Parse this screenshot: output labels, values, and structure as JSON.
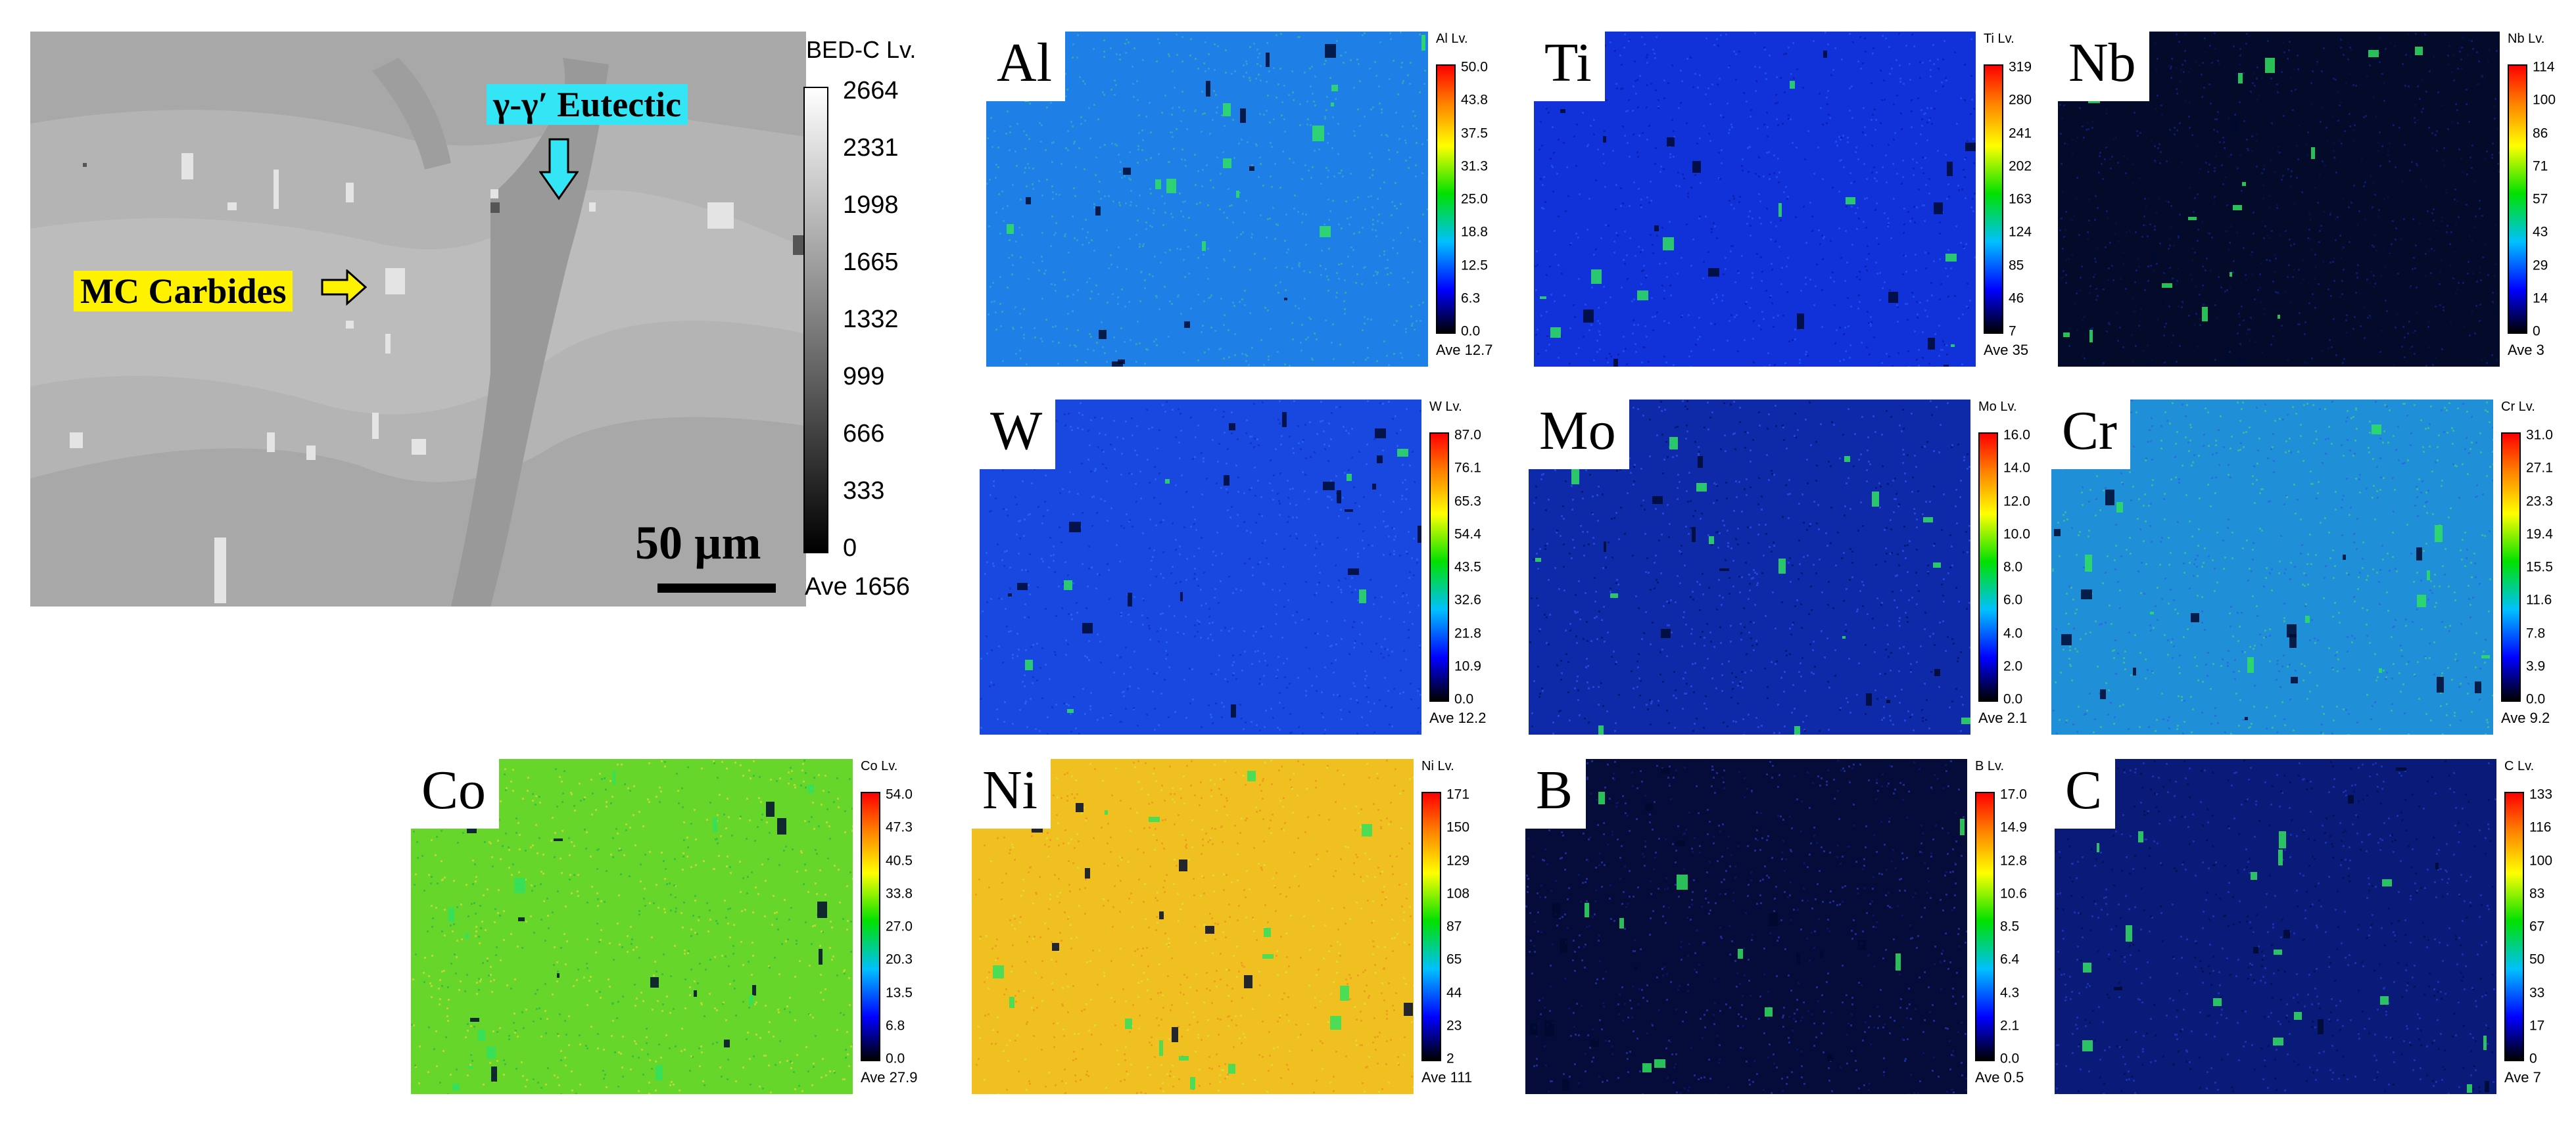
{
  "bed": {
    "title": "BED-C  Lv.",
    "ticks": [
      "2664",
      "2331",
      "1998",
      "1665",
      "1332",
      "999",
      "666",
      "333",
      "0"
    ],
    "ave": "Ave 1656",
    "scale_bar_label": "50 µm",
    "annotation_carbides": "MC Carbides",
    "annotation_eutectic": "γ-γ′ Eutectic"
  },
  "maps": [
    {
      "id": "al",
      "element": "Al",
      "lv": "Al  Lv.",
      "ticks": [
        "50.0",
        "43.8",
        "37.5",
        "31.3",
        "25.0",
        "18.8",
        "12.5",
        "6.3",
        "0.0"
      ],
      "ave": "Ave 12.7",
      "bg": "#1e7fe6",
      "dot": "#2a9bd8",
      "dot2": "#3aa0b0"
    },
    {
      "id": "ti",
      "element": "Ti",
      "lv": "Ti  Lv.",
      "ticks": [
        "319",
        "280",
        "241",
        "202",
        "163",
        "124",
        "85",
        "46",
        "7"
      ],
      "ave": "Ave 35",
      "bg": "#1132d8",
      "dot": "#1a4af0",
      "dot2": "#0f22b8"
    },
    {
      "id": "nb",
      "element": "Nb",
      "lv": "Nb  Lv.",
      "ticks": [
        "114",
        "100",
        "86",
        "71",
        "57",
        "43",
        "29",
        "14",
        "0"
      ],
      "ave": "Ave 3",
      "bg": "#040a2a",
      "dot": "#0a1a6a",
      "dot2": "#05103f"
    },
    {
      "id": "w",
      "element": "W",
      "lv": "W  Lv.",
      "ticks": [
        "87.0",
        "76.1",
        "65.3",
        "54.4",
        "43.5",
        "32.6",
        "21.8",
        "10.9",
        "0.0"
      ],
      "ave": "Ave 12.2",
      "bg": "#1848e0",
      "dot": "#2260f0",
      "dot2": "#1238c8"
    },
    {
      "id": "mo",
      "element": "Mo",
      "lv": "Mo  Lv.",
      "ticks": [
        "16.0",
        "14.0",
        "12.0",
        "10.0",
        "8.0",
        "6.0",
        "4.0",
        "2.0",
        "0.0"
      ],
      "ave": "Ave 2.1",
      "bg": "#0f2aa8",
      "dot": "#2244d8",
      "dot2": "#081a78"
    },
    {
      "id": "cr",
      "element": "Cr",
      "lv": "Cr  Lv.",
      "ticks": [
        "31.0",
        "27.1",
        "23.3",
        "19.4",
        "15.5",
        "11.6",
        "7.8",
        "3.9",
        "0.0"
      ],
      "ave": "Ave 9.2",
      "bg": "#1f8fd8",
      "dot": "#3ab4a0",
      "dot2": "#2a70e0"
    },
    {
      "id": "co",
      "element": "Co",
      "lv": "Co  Lv.",
      "ticks": [
        "54.0",
        "47.3",
        "40.5",
        "33.8",
        "27.0",
        "20.3",
        "13.5",
        "6.8",
        "0.0"
      ],
      "ave": "Ave 27.9",
      "bg": "#66d62a",
      "dot": "#b8d830",
      "dot2": "#3cc040"
    },
    {
      "id": "ni",
      "element": "Ni",
      "lv": "Ni  Lv.",
      "ticks": [
        "171",
        "150",
        "129",
        "108",
        "87",
        "65",
        "44",
        "23",
        "2"
      ],
      "ave": "Ave 111",
      "bg": "#f0c020",
      "dot": "#f0a020",
      "dot2": "#e0d838"
    },
    {
      "id": "b",
      "element": "B",
      "lv": "B  Lv.",
      "ticks": [
        "17.0",
        "14.9",
        "12.8",
        "10.6",
        "8.5",
        "6.4",
        "4.3",
        "2.1",
        "0.0"
      ],
      "ave": "Ave 0.5",
      "bg": "#050c3a",
      "dot": "#1a2a90",
      "dot2": "#081560"
    },
    {
      "id": "c",
      "element": "C",
      "lv": "C  Lv.",
      "ticks": [
        "133",
        "116",
        "100",
        "83",
        "67",
        "50",
        "33",
        "17",
        "0"
      ],
      "ave": "Ave 7",
      "bg": "#0a1a78",
      "dot": "#1630b0",
      "dot2": "#061258"
    }
  ]
}
